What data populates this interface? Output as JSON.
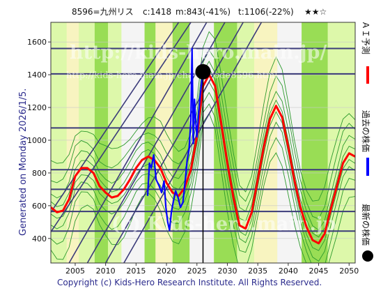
{
  "header": {
    "code": "8596=九州リス",
    "current": "c:1418",
    "min": "m:843(-41%)",
    "target": "t:1106(-22%)",
    "stars": "★★☆"
  },
  "side_text": "Generated on Monday 2026/1/5.",
  "watermark": {
    "main": "http://kids-hero.main.jp/",
    "sub": "http://kids-hero.main.jp/charts/code8596.html",
    "bottom": "(c) Kids-hero.main.jp"
  },
  "legend": {
    "ai": "ＡＩ予測",
    "past": "過去の株価",
    "latest": "最新の株価"
  },
  "copyright": "Copyright (c) Kids-Hero Research Institute. All Rights Reserved.",
  "colors": {
    "prediction": "#ff0000",
    "past_price": "#0000ff",
    "latest_marker": "#000000",
    "background_band_light": "#ddf8aa",
    "background_band_green": "#99dd55",
    "background_band_white": "#f4f4f4",
    "background_band_yellow": "#f8f4c0",
    "resistance_line": "#3b3b7a",
    "forecast_band_lines": "#2d9a2d"
  },
  "chart_data": {
    "type": "line",
    "xlim": [
      2001,
      2051
    ],
    "ylim": [
      250,
      1720
    ],
    "x_ticks": [
      2005,
      2010,
      2015,
      2020,
      2025,
      2030,
      2035,
      2040,
      2045,
      2050
    ],
    "y_ticks": [
      400,
      600,
      800,
      1000,
      1200,
      1400,
      1600
    ],
    "horizontal_levels": [
      1560,
      1405,
      1075,
      820,
      700,
      565,
      445
    ],
    "latest_point": {
      "x": 2026.0,
      "y": 1418
    },
    "series": [
      {
        "name": "ＡＩ予測",
        "x": [
          2001,
          2002,
          2003,
          2004,
          2005,
          2006,
          2007,
          2008,
          2009,
          2010,
          2011,
          2012,
          2013,
          2014,
          2015,
          2016,
          2017,
          2018,
          2019,
          2020,
          2021,
          2022,
          2023,
          2024,
          2025,
          2026,
          2027,
          2028,
          2029,
          2030,
          2031,
          2032,
          2033,
          2034,
          2035,
          2036,
          2037,
          2038,
          2039,
          2040,
          2041,
          2042,
          2043,
          2044,
          2045,
          2046,
          2047,
          2048,
          2049,
          2050,
          2051
        ],
        "values": [
          590,
          560,
          570,
          640,
          780,
          830,
          830,
          800,
          720,
          680,
          650,
          660,
          700,
          760,
          830,
          880,
          900,
          880,
          830,
          740,
          680,
          660,
          710,
          820,
          1020,
          1330,
          1400,
          1330,
          1100,
          860,
          650,
          480,
          460,
          560,
          760,
          960,
          1130,
          1210,
          1140,
          960,
          760,
          590,
          470,
          390,
          370,
          430,
          580,
          720,
          860,
          920,
          900
        ]
      },
      {
        "name": "過去の株価",
        "x": [
          2016.9,
          2017.2,
          2017.5,
          2017.9,
          2018.3,
          2018.8,
          2019.2,
          2019.6,
          2019.9,
          2020.2,
          2020.5,
          2020.8,
          2021.1,
          2021.5,
          2021.9,
          2022.3,
          2022.7,
          2023.1,
          2023.4,
          2023.7,
          2024.0,
          2024.2,
          2024.4,
          2024.6,
          2024.8,
          2025.0,
          2025.2,
          2025.5,
          2025.8,
          2026.0
        ],
        "values": [
          660,
          860,
          830,
          910,
          760,
          720,
          680,
          750,
          590,
          500,
          450,
          560,
          620,
          690,
          650,
          590,
          620,
          760,
          880,
          940,
          1120,
          1560,
          980,
          1250,
          1120,
          1020,
          1120,
          1260,
          1360,
          1418
        ]
      }
    ]
  }
}
